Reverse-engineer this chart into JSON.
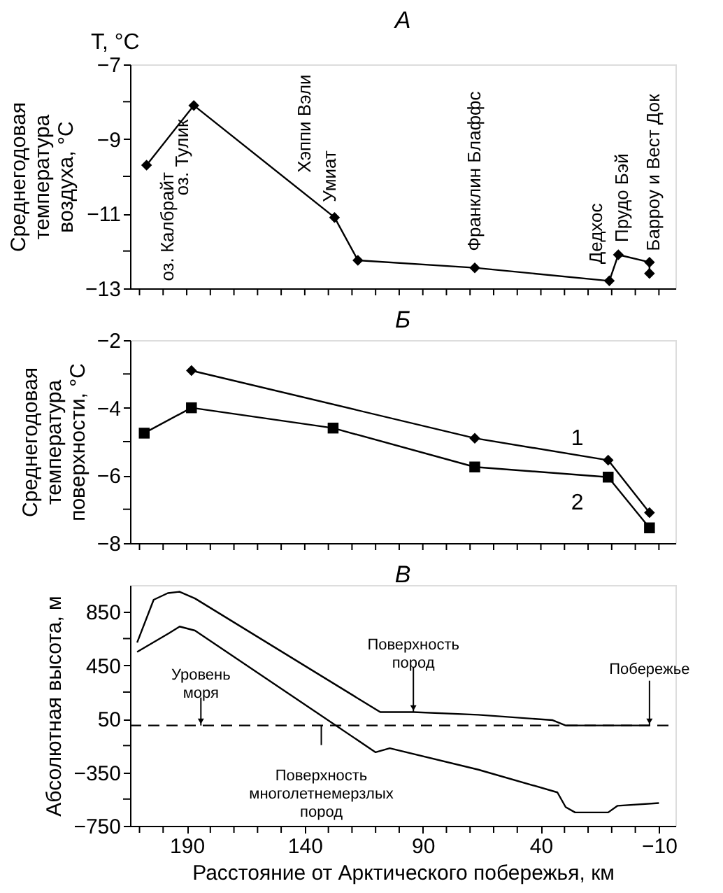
{
  "chart_data": [
    {
      "type": "line",
      "title": "A",
      "ylabel": "Среднегодовая\nтемпература\nвоздуха, °C",
      "xlim": [
        214,
        -17
      ],
      "xticks": [
        {
          "value": 210,
          "label": null
        },
        {
          "value": 200,
          "label": null
        },
        {
          "value": 190,
          "label": null
        },
        {
          "value": 180,
          "label": null
        },
        {
          "value": 170,
          "label": null
        },
        {
          "value": 160,
          "label": null
        },
        {
          "value": 150,
          "label": null
        },
        {
          "value": 140,
          "label": null
        },
        {
          "value": 130,
          "label": null
        },
        {
          "value": 120,
          "label": null
        },
        {
          "value": 110,
          "label": null
        },
        {
          "value": 100,
          "label": null
        },
        {
          "value": 90,
          "label": null
        },
        {
          "value": 80,
          "label": null
        },
        {
          "value": 70,
          "label": null
        },
        {
          "value": 60,
          "label": null
        },
        {
          "value": 50,
          "label": null
        },
        {
          "value": 40,
          "label": null
        },
        {
          "value": 30,
          "label": null
        },
        {
          "value": 20,
          "label": null
        },
        {
          "value": 10,
          "label": null
        },
        {
          "value": 0,
          "label": null
        },
        {
          "value": -10,
          "label": null
        }
      ],
      "ylim": [
        -13,
        -7
      ],
      "yticks": [
        -7,
        {
          "value": -8,
          "label": null
        },
        -9,
        {
          "value": -10,
          "label": null
        },
        -11,
        {
          "value": -12,
          "label": null
        },
        -13
      ],
      "tick_labels": "y",
      "grid": false,
      "line_style": "solid",
      "series": [
        {
          "color": "#000000",
          "marker": "diamond",
          "x": [
            207,
            187,
            127.4,
            117.5,
            68,
            11,
            7.2,
            -6,
            -6
          ],
          "values": [
            -9.7,
            -8.1,
            -11.1,
            -12.25,
            -12.45,
            -12.8,
            -12.1,
            -12.3,
            -12.6
          ]
        }
      ],
      "annotations": [
        "T, °C",
        {
          "text": "оз. Калбрайт",
          "x": 207,
          "y": -9.7
        },
        {
          "text": "оз. Тулик",
          "x": 187,
          "y": -8.1
        },
        {
          "text": "Хэппи Вэли",
          "x": 127.4,
          "y": -11.1
        },
        {
          "text": "Умиат",
          "x": 127.4,
          "y": -11.1
        },
        {
          "text": "Франклин Блаффс",
          "x": 68,
          "y": -12.45
        },
        {
          "text": "Дедхос",
          "x": 11,
          "y": -12.8
        },
        {
          "text": "Прудо Бэй",
          "x": 7.2,
          "y": -12.1
        },
        {
          "text": "Барроу и Вест Док",
          "x": -6,
          "y": -12.3
        }
      ]
    },
    {
      "type": "line",
      "title": "Б",
      "ylabel": "Среднегодовая\nтемпература\nповерхности, °C",
      "xlim": [
        214,
        -17
      ],
      "xticks": [
        {
          "value": 210,
          "label": null
        },
        {
          "value": 200,
          "label": null
        },
        {
          "value": 190,
          "label": null
        },
        {
          "value": 180,
          "label": null
        },
        {
          "value": 170,
          "label": null
        },
        {
          "value": 160,
          "label": null
        },
        {
          "value": 150,
          "label": null
        },
        {
          "value": 140,
          "label": null
        },
        {
          "value": 130,
          "label": null
        },
        {
          "value": 120,
          "label": null
        },
        {
          "value": 110,
          "label": null
        },
        {
          "value": 100,
          "label": null
        },
        {
          "value": 90,
          "label": null
        },
        {
          "value": 80,
          "label": null
        },
        {
          "value": 70,
          "label": null
        },
        {
          "value": 60,
          "label": null
        },
        {
          "value": 50,
          "label": null
        },
        {
          "value": 40,
          "label": null
        },
        {
          "value": 30,
          "label": null
        },
        {
          "value": 20,
          "label": null
        },
        {
          "value": 10,
          "label": null
        },
        {
          "value": 0,
          "label": null
        },
        {
          "value": -10,
          "label": null
        }
      ],
      "ylim": [
        -8,
        -2
      ],
      "yticks": [
        -2,
        {
          "value": -3,
          "label": null
        },
        -4,
        {
          "value": -5,
          "label": null
        },
        -6,
        {
          "value": -7,
          "label": null
        },
        -8
      ],
      "tick_labels": "y",
      "grid": false,
      "line_style": "solid",
      "series": [
        {
          "name": "1",
          "color": "#000000",
          "marker": "diamond",
          "x": [
            188,
            68,
            11.5,
            -6
          ],
          "values": [
            -2.9,
            -4.9,
            -5.55,
            -7.1
          ]
        },
        {
          "name": "2",
          "color": "#000000",
          "marker": "square",
          "x": [
            208,
            188,
            128,
            68,
            11.5,
            -6
          ],
          "values": [
            -4.75,
            -4.0,
            -4.6,
            -5.75,
            -6.05,
            -7.55
          ]
        }
      ]
    },
    {
      "type": "line",
      "title": "В",
      "ylabel": "Абсолютная высота, м",
      "xlabel": "Расстояние от Арктического побережья, км",
      "xlim": [
        214,
        -17
      ],
      "xticks": [
        {
          "value": 210,
          "label": null
        },
        {
          "value": 200,
          "label": null
        },
        190,
        {
          "value": 180,
          "label": null
        },
        {
          "value": 170,
          "label": null
        },
        {
          "value": 160,
          "label": null
        },
        {
          "value": 150,
          "label": null
        },
        140,
        {
          "value": 130,
          "label": null
        },
        {
          "value": 120,
          "label": null
        },
        {
          "value": 110,
          "label": null
        },
        {
          "value": 100,
          "label": null
        },
        90,
        {
          "value": 80,
          "label": null
        },
        {
          "value": 70,
          "label": null
        },
        {
          "value": 60,
          "label": null
        },
        {
          "value": 50,
          "label": null
        },
        40,
        {
          "value": 30,
          "label": null
        },
        {
          "value": 20,
          "label": null
        },
        {
          "value": 10,
          "label": null
        },
        {
          "value": 0,
          "label": null
        },
        -10
      ],
      "ylim": [
        -750,
        1050
      ],
      "yticks": [
        850,
        {
          "value": 650,
          "label": null
        },
        450,
        {
          "value": 250,
          "label": null
        },
        50,
        {
          "value": -150,
          "label": null
        },
        -350,
        {
          "value": -550,
          "label": null
        },
        -750
      ],
      "grid": false,
      "line_style": "solid",
      "series": [
        {
          "color": "#000000",
          "marker": "none",
          "x": [
            211,
            204,
            198,
            193,
            186.5,
            108,
            94,
            66.5,
            35,
            29.5,
            -6
          ],
          "values": [
            620,
            940,
            990,
            1000,
            950,
            100,
            100,
            80,
            40,
            0,
            0
          ]
        },
        {
          "color": "#000000",
          "marker": "none",
          "x": [
            211,
            197.5,
            193,
            186.5,
            110,
            104,
            66.5,
            33,
            29.5,
            25.5,
            11.5,
            7.5,
            -10
          ],
          "values": [
            550,
            690,
            740,
            710,
            -200,
            -170,
            -330,
            -500,
            -610,
            -650,
            -650,
            -600,
            -580
          ]
        }
      ],
      "ref_lines": [
        {
          "axis": "y",
          "value": 0,
          "color": "#000000",
          "line_style": "dashed"
        }
      ],
      "annotations": [
        {
          "text": "Уровень\nморя",
          "x": 184,
          "y": 0
        },
        {
          "text": "Поверхность\nпород",
          "x": 94,
          "y": 100
        },
        {
          "text": "Поверхность\nмноголетнемерзлых\nпород",
          "x": 133,
          "y": 0
        },
        {
          "text": "Побережье",
          "x": -6,
          "y": 0
        }
      ]
    }
  ]
}
